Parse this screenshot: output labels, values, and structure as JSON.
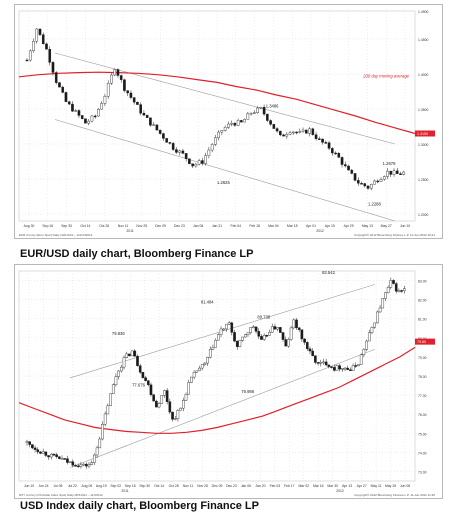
{
  "captions": {
    "eurusd": "EUR/USD daily chart, Bloomberg Finance LP",
    "usdindex": "USD Index daily chart, Bloomberg Finance LP"
  },
  "colors": {
    "candle_up": "#ffffff",
    "candle_down": "#1a1a1a",
    "moving_average": "#e0202a",
    "channel": "#9a9a9a",
    "gridline": "#dcdcdc",
    "text": "#333333"
  },
  "chart_data": [
    {
      "type": "candlestick",
      "grid": true,
      "ylim": [
        1.19,
        1.49
      ],
      "x_ticks": [
        "Aug 30",
        "Sep 16",
        "Sep 30",
        "Oct 14",
        "Oct 28",
        "Nov 11",
        "Nov 25",
        "Dec 09",
        "Dec 23",
        "Jan 06",
        "Jan 21",
        "Feb 04",
        "Feb 18",
        "Mar 04",
        "Mar 18",
        "Apr 01",
        "Apr 15",
        "Apr 29",
        "May 13",
        "May 27",
        "Jun 10"
      ],
      "x_year_labels": [
        "2011",
        "2012"
      ],
      "y_ticks": [
        "1.4900",
        "1.4500",
        "1.4000",
        "1.3500",
        "1.3000",
        "1.2500",
        "1.2000"
      ],
      "price_marker": "1.3150",
      "series": [
        {
          "name": "200 day moving average",
          "values": [
            1.396,
            1.399,
            1.401,
            1.402,
            1.4025,
            1.402,
            1.401,
            1.399,
            1.396,
            1.392,
            1.388,
            1.382,
            1.377,
            1.37,
            1.364,
            1.356,
            1.348,
            1.34,
            1.331,
            1.323,
            1.315
          ]
        }
      ],
      "close_path": [
        1.42,
        1.465,
        1.435,
        1.39,
        1.36,
        1.345,
        1.33,
        1.34,
        1.37,
        1.41,
        1.38,
        1.36,
        1.34,
        1.325,
        1.31,
        1.295,
        1.285,
        1.27,
        1.275,
        1.3,
        1.32,
        1.33,
        1.33,
        1.345,
        1.35,
        1.33,
        1.31,
        1.32,
        1.315,
        1.32,
        1.305,
        1.295,
        1.28,
        1.26,
        1.245,
        1.238,
        1.25,
        1.26,
        1.257,
        1.26
      ],
      "trend_channel": {
        "upper": [
          1.43,
          1.3
        ],
        "lower": [
          1.335,
          1.19
        ]
      },
      "annotations": [
        {
          "text": "200 day moving average",
          "x": 34.5,
          "y": 1.395
        },
        {
          "text": "1.3486",
          "x": 24.5,
          "y": 1.352
        },
        {
          "text": "1.2625",
          "x": 19.5,
          "y": 1.243
        },
        {
          "text": "1.2678",
          "x": 36.5,
          "y": 1.27
        },
        {
          "text": "1.2288",
          "x": 35.0,
          "y": 1.212
        }
      ],
      "footer_left": "EUR Curncy (Euro Spot) Daily 13AUG10 – 11JUN2012",
      "footer_right": "Copyright© 2012 Bloomberg Finance L.P.    11-Jun-2012 16:21"
    },
    {
      "type": "candlestick",
      "grid": true,
      "ylim": [
        72.5,
        83.5
      ],
      "x_ticks": [
        "Jun 10",
        "Jun 24",
        "Jul 08",
        "Jul 22",
        "Aug 05",
        "Aug 19",
        "Sep 02",
        "Sep 16",
        "Sep 30",
        "Oct 14",
        "Oct 28",
        "Nov 11",
        "Nov 25",
        "Dec 09",
        "Dec 23",
        "Jan 06",
        "Jan 20",
        "Feb 03",
        "Feb 17",
        "Mar 02",
        "Mar 16",
        "Mar 30",
        "Apr 13",
        "Apr 27",
        "May 11",
        "May 25",
        "Jun 08"
      ],
      "x_year_labels": [
        "2011",
        "2012"
      ],
      "y_ticks": [
        "83.00",
        "82.00",
        "81.00",
        "80.00",
        "79.00",
        "78.00",
        "77.00",
        "76.00",
        "75.00",
        "74.00",
        "73.00"
      ],
      "price_marker": "79.80",
      "series": [
        {
          "name": "200 day moving average",
          "values": [
            76.6,
            76.3,
            76.0,
            75.7,
            75.5,
            75.3,
            75.2,
            75.1,
            75.05,
            75.0,
            75.0,
            75.05,
            75.15,
            75.3,
            75.5,
            75.7,
            75.9,
            76.2,
            76.5,
            76.8,
            77.1,
            77.4,
            77.8,
            78.2,
            78.6,
            79.0,
            79.5
          ]
        }
      ],
      "close_path": [
        74.5,
        74.2,
        74.0,
        73.8,
        73.7,
        73.5,
        73.4,
        73.3,
        73.4,
        74.8,
        76.5,
        78.0,
        78.9,
        79.3,
        78.3,
        77.5,
        76.4,
        77.2,
        75.7,
        76.3,
        77.6,
        78.3,
        78.6,
        79.6,
        80.4,
        80.7,
        79.5,
        80.2,
        80.6,
        79.8,
        80.4,
        80.6,
        79.5,
        80.9,
        80.0,
        79.2,
        78.6,
        78.7,
        78.4,
        78.5,
        78.3,
        78.7,
        79.8,
        80.9,
        82.0,
        82.9,
        82.4,
        82.6
      ],
      "trend_channel": {
        "upper": [
          77.9,
          82.8
        ],
        "lower": [
          73.2,
          79.4
        ]
      },
      "annotations": [
        {
          "text": "79.836",
          "x": 10.5,
          "y": 80.15
        },
        {
          "text": "77.676",
          "x": 13.0,
          "y": 77.45
        },
        {
          "text": "81.484",
          "x": 21.5,
          "y": 81.8
        },
        {
          "text": "80.738",
          "x": 28.5,
          "y": 81.0
        },
        {
          "text": "76.986",
          "x": 26.5,
          "y": 77.1
        },
        {
          "text": "83.542",
          "x": 36.5,
          "y": 83.35
        }
      ],
      "footer_left": "DXY Curncy (US Dollar Index Spot) Daily 08JUN11 – 11JUN12",
      "footer_right": "Copyright© 2012 Bloomberg Finance L.P.    11-Jun-2012 11:36"
    }
  ]
}
